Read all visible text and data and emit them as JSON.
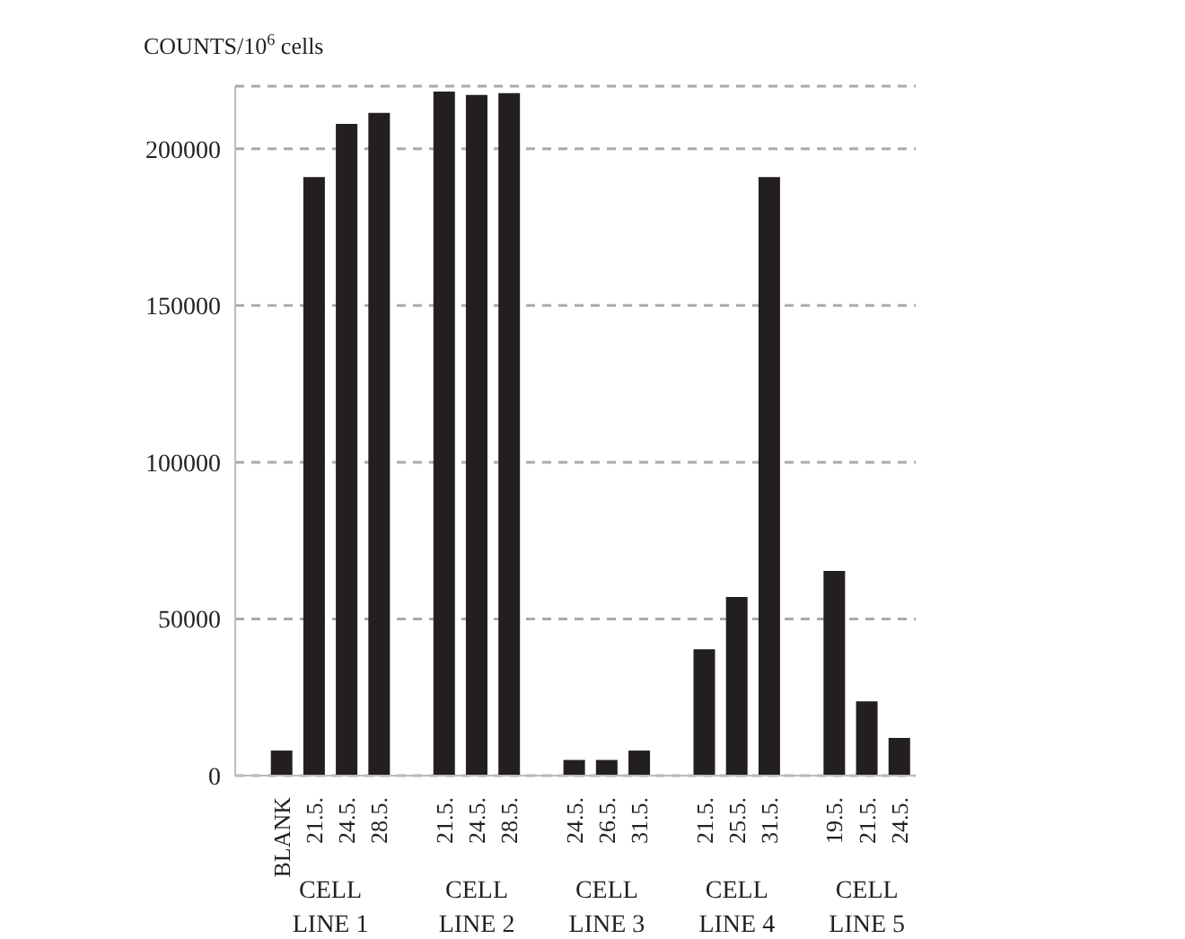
{
  "chart_data": {
    "type": "bar",
    "ylabel": "COUNTS/10$^{6}$ cells",
    "categories": [
      "BLANK",
      "21.5.",
      "24.5.",
      "28.5.",
      null,
      "21.5.",
      "24.5.",
      "28.5.",
      null,
      "24.5.",
      "26.5.",
      "31.5.",
      null,
      "21.5.",
      "25.5.",
      "31.5.",
      null,
      "19.5.",
      "21.5.",
      "24.5."
    ],
    "values": [
      8000,
      191000,
      208000,
      211500,
      null,
      218300,
      217200,
      217800,
      null,
      5000,
      5000,
      8000,
      null,
      40300,
      57000,
      191000,
      null,
      65300,
      23700,
      12000
    ],
    "color": "#231f20",
    "ylim": [
      0,
      220000
    ],
    "yticks": [
      0,
      50000,
      100000,
      150000,
      200000
    ],
    "grid": "y",
    "annotations": [
      "CELL LINE 1",
      "CELL LINE 2",
      "CELL LINE 3",
      "CELL LINE 4",
      "CELL LINE 5"
    ]
  }
}
